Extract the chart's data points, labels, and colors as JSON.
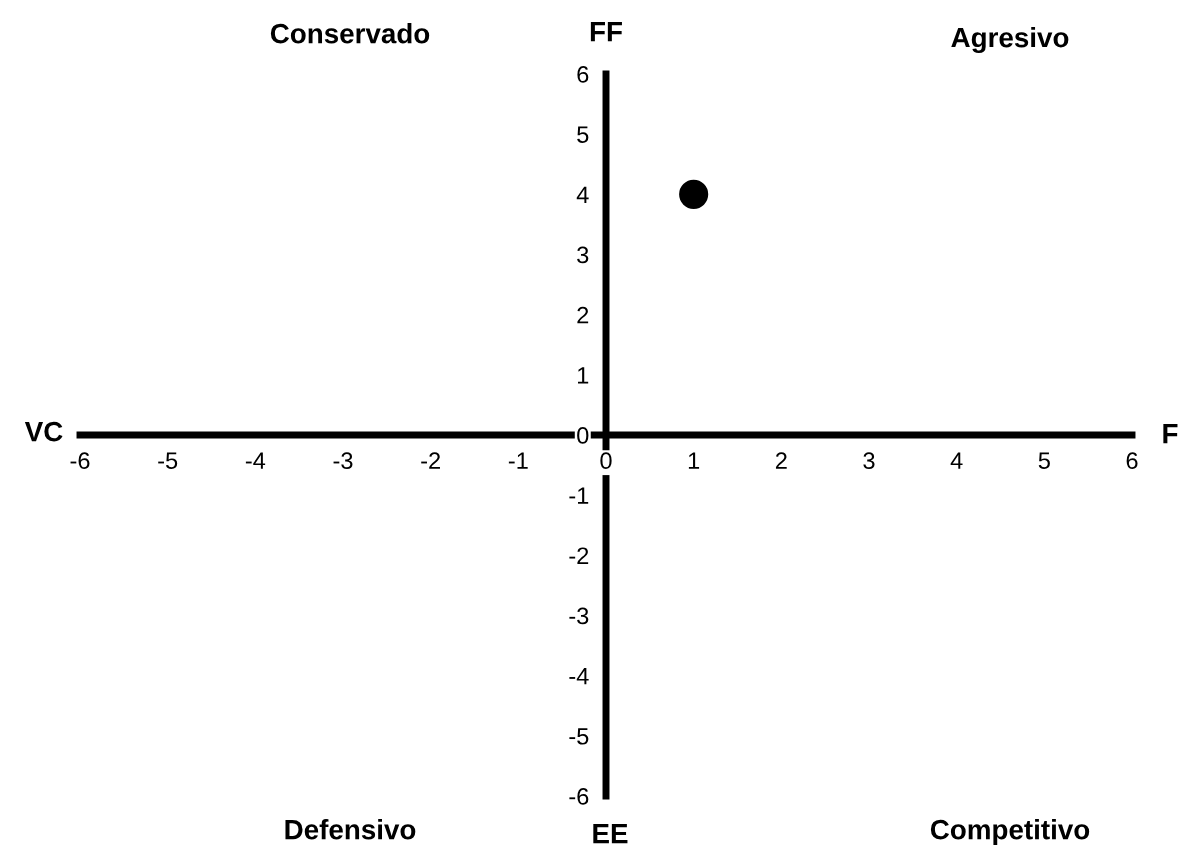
{
  "chart_data": {
    "type": "scatter",
    "xlabel": "F",
    "ylabel": "FF",
    "annotations": [
      "Conservado",
      "Agresivo",
      "VC",
      "Defensivo",
      "EE",
      "Competitivo"
    ],
    "x": [
      1
    ],
    "series": [
      {
        "color": "#000000",
        "values": [
          4
        ]
      }
    ],
    "marker": "circle",
    "xlim": [
      -6,
      6
    ],
    "ylim": [
      -6,
      6
    ],
    "xticks": [
      -6,
      -5,
      -4,
      -3,
      -2,
      -1,
      0,
      1,
      2,
      3,
      4,
      5,
      6
    ],
    "yticks": [
      -6,
      -5,
      -4,
      -3,
      -2,
      -1,
      0,
      1,
      2,
      3,
      4,
      5,
      6
    ]
  }
}
